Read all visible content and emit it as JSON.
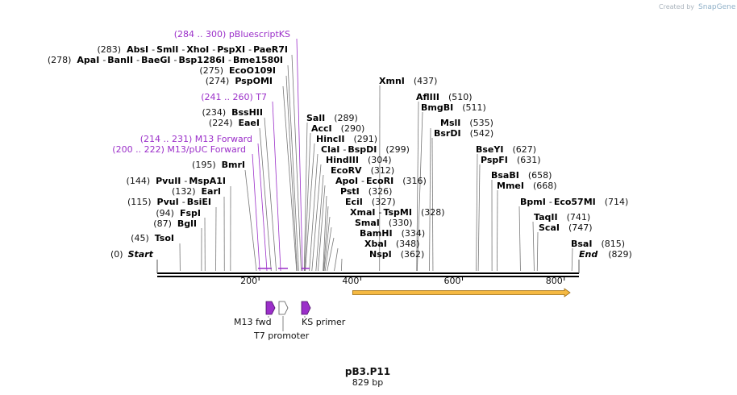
{
  "title": "pB3.P11",
  "length_label": "829 bp",
  "length_bp": 829,
  "branding": {
    "created_by": "Created by",
    "product": "SnapGene"
  },
  "colors": {
    "primer": "#9b2fc9",
    "arrow_fill": "#f5b942",
    "arrow_stroke": "#9a6a10",
    "backbone": "#000000"
  },
  "axis_ticks": [
    {
      "label": "200",
      "bp": 200
    },
    {
      "label": "400",
      "bp": 400
    },
    {
      "label": "600",
      "bp": 600
    },
    {
      "label": "800",
      "bp": 800
    }
  ],
  "ends": {
    "start": {
      "pos": "(0)",
      "name": "Start"
    },
    "end": {
      "pos": "(829)",
      "name": "End"
    }
  },
  "left_sites": [
    {
      "pre": "(283)",
      "items": [
        "AbsI",
        "SmlI",
        "XhoI",
        "PspXI",
        "PaeR7I"
      ],
      "post": "",
      "bp": 283
    },
    {
      "pre": "(278)",
      "items": [
        "ApaI",
        "BanII",
        "BaeGI",
        "Bsp1286I",
        "Bme1580I"
      ],
      "post": "",
      "bp": 278
    },
    {
      "pre": "(275)",
      "items": [
        "EcoO109I"
      ],
      "post": "",
      "bp": 275
    },
    {
      "pre": "(274)",
      "items": [
        "PspOMI"
      ],
      "post": "",
      "bp": 274
    },
    {
      "pre": "(234)",
      "items": [
        "BssHII"
      ],
      "post": "",
      "bp": 234
    },
    {
      "pre": "(224)",
      "items": [
        "EaeI"
      ],
      "post": "",
      "bp": 224
    },
    {
      "pre": "(195)",
      "items": [
        "BmrI"
      ],
      "post": "",
      "bp": 195
    },
    {
      "pre": "(144)",
      "items": [
        "PvuII",
        "MspA1I"
      ],
      "post": "",
      "bp": 144
    },
    {
      "pre": "(132)",
      "items": [
        "EarI"
      ],
      "post": "",
      "bp": 132
    },
    {
      "pre": "(115)",
      "items": [
        "PvuI",
        "BsiEI"
      ],
      "post": "",
      "bp": 115
    },
    {
      "pre": "(94)",
      "items": [
        "FspI"
      ],
      "post": "",
      "bp": 94
    },
    {
      "pre": "(87)",
      "items": [
        "BglI"
      ],
      "post": "",
      "bp": 87
    },
    {
      "pre": "(45)",
      "items": [
        "TsoI"
      ],
      "post": "",
      "bp": 45
    }
  ],
  "primer_labels": [
    {
      "text": "(284 .. 300)  pBluescriptKS",
      "bp": 284
    },
    {
      "text": "(241 .. 260)  T7",
      "bp": 241
    },
    {
      "text": "(214 .. 231)  M13 Forward",
      "bp": 214
    },
    {
      "text": "(200 .. 222)  M13/pUC Forward",
      "bp": 200
    }
  ],
  "right_sites": [
    {
      "items": [
        "XmnI"
      ],
      "post": "(437)",
      "bp": 437
    },
    {
      "items": [
        "AflIII"
      ],
      "post": "(510)",
      "bp": 510
    },
    {
      "items": [
        "BmgBI"
      ],
      "post": "(511)",
      "bp": 511
    },
    {
      "items": [
        "SalI"
      ],
      "post": "(289)",
      "bp": 289
    },
    {
      "items": [
        "MslI"
      ],
      "post": "(535)",
      "bp": 535
    },
    {
      "items": [
        "AccI"
      ],
      "post": "(290)",
      "bp": 290
    },
    {
      "items": [
        "BsrDI"
      ],
      "post": "(542)",
      "bp": 542
    },
    {
      "items": [
        "HincII"
      ],
      "post": "(291)",
      "bp": 291
    },
    {
      "items": [
        "ClaI",
        "BspDI"
      ],
      "post": "(299)",
      "bp": 299
    },
    {
      "items": [
        "BseYI"
      ],
      "post": "(627)",
      "bp": 627
    },
    {
      "items": [
        "HindIII"
      ],
      "post": "(304)",
      "bp": 304
    },
    {
      "items": [
        "PspFI"
      ],
      "post": "(631)",
      "bp": 631
    },
    {
      "items": [
        "EcoRV"
      ],
      "post": "(312)",
      "bp": 312
    },
    {
      "items": [
        "BsaBI"
      ],
      "post": "(658)",
      "bp": 658
    },
    {
      "items": [
        "ApoI",
        "EcoRI"
      ],
      "post": "(316)",
      "bp": 316
    },
    {
      "items": [
        "MmeI"
      ],
      "post": "(668)",
      "bp": 668
    },
    {
      "items": [
        "PstI"
      ],
      "post": "(326)",
      "bp": 326
    },
    {
      "items": [
        "BpmI",
        "Eco57MI"
      ],
      "post": "(714)",
      "bp": 714
    },
    {
      "items": [
        "EciI"
      ],
      "post": "(327)",
      "bp": 327
    },
    {
      "items": [
        "XmaI",
        "TspMI"
      ],
      "post": "(328)",
      "bp": 328
    },
    {
      "items": [
        "TaqII"
      ],
      "post": "(741)",
      "bp": 741
    },
    {
      "items": [
        "SmaI"
      ],
      "post": "(330)",
      "bp": 330
    },
    {
      "items": [
        "ScaI"
      ],
      "post": "(747)",
      "bp": 747
    },
    {
      "items": [
        "BamHI"
      ],
      "post": "(334)",
      "bp": 334
    },
    {
      "items": [
        "XbaI"
      ],
      "post": "(348)",
      "bp": 348
    },
    {
      "items": [
        "BsaI"
      ],
      "post": "(815)",
      "bp": 815
    },
    {
      "items": [
        "NspI"
      ],
      "post": "(362)",
      "bp": 362
    }
  ],
  "features": [
    {
      "name": "M13 fwd",
      "bp": 214,
      "style": "primer"
    },
    {
      "name": "T7 promoter",
      "bp": 241,
      "style": "outline"
    },
    {
      "name": "KS primer",
      "bp": 284,
      "style": "primer"
    }
  ],
  "orf_arrow": {
    "from_bp": 400,
    "to_bp": 810
  }
}
